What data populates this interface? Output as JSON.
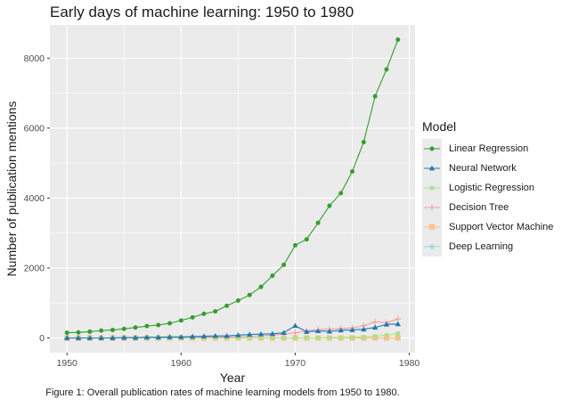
{
  "chart_data": {
    "type": "line",
    "title": "Early days of machine learning: 1950 to 1980",
    "xlabel": "Year",
    "ylabel": "Number of publication mentions",
    "caption": "Figure 1: Overall publication rates of machine learning models from 1950 to 1980.",
    "x_ticks": [
      "1950",
      "1960",
      "1970",
      "1980"
    ],
    "y_ticks": [
      "0",
      "2000",
      "4000",
      "6000",
      "8000"
    ],
    "xlim": [
      1948.5,
      1980.5
    ],
    "ylim": [
      -420,
      8950
    ],
    "grid": true,
    "legend_title": "Model",
    "legend_position": "right",
    "x": [
      1950,
      1951,
      1952,
      1953,
      1954,
      1955,
      1956,
      1957,
      1958,
      1959,
      1960,
      1961,
      1962,
      1963,
      1964,
      1965,
      1966,
      1967,
      1968,
      1969,
      1970,
      1971,
      1972,
      1973,
      1974,
      1975,
      1976,
      1977,
      1978,
      1979
    ],
    "series": [
      {
        "name": "Linear Regression",
        "color": "#33a02c",
        "marker": "circle",
        "values": [
          150,
          160,
          180,
          210,
          230,
          260,
          300,
          340,
          370,
          420,
          500,
          590,
          690,
          760,
          920,
          1070,
          1230,
          1460,
          1780,
          2090,
          2650,
          2820,
          3290,
          3780,
          4140,
          4760,
          5600,
          6910,
          7680,
          8530
        ]
      },
      {
        "name": "Neural Network",
        "color": "#1f78b4",
        "marker": "triangle",
        "values": [
          0,
          0,
          0,
          0,
          0,
          10,
          10,
          20,
          20,
          30,
          30,
          40,
          50,
          60,
          60,
          80,
          100,
          110,
          120,
          150,
          350,
          180,
          200,
          190,
          220,
          230,
          250,
          300,
          390,
          400
        ]
      },
      {
        "name": "Logistic Regression",
        "color": "#b2df8a",
        "marker": "square",
        "values": [
          0,
          0,
          0,
          0,
          0,
          0,
          0,
          0,
          0,
          0,
          0,
          0,
          0,
          0,
          0,
          0,
          0,
          0,
          0,
          0,
          0,
          0,
          0,
          10,
          10,
          20,
          30,
          50,
          80,
          130
        ]
      },
      {
        "name": "Decision Tree",
        "color": "#fb9a99",
        "marker": "plus",
        "values": [
          0,
          0,
          0,
          0,
          0,
          0,
          0,
          0,
          0,
          10,
          10,
          10,
          20,
          20,
          30,
          30,
          40,
          60,
          80,
          110,
          150,
          200,
          240,
          250,
          270,
          290,
          350,
          460,
          440,
          540
        ]
      },
      {
        "name": "Support Vector Machine",
        "color": "#fdbf6f",
        "marker": "square-cross",
        "values": [
          0,
          0,
          0,
          0,
          0,
          0,
          0,
          0,
          0,
          0,
          0,
          0,
          0,
          0,
          0,
          0,
          0,
          0,
          0,
          0,
          0,
          0,
          0,
          0,
          0,
          0,
          0,
          0,
          0,
          0
        ]
      },
      {
        "name": "Deep Learning",
        "color": "#a6cee3",
        "marker": "asterisk",
        "values": [
          0,
          0,
          0,
          0,
          0,
          0,
          0,
          0,
          0,
          0,
          0,
          0,
          0,
          0,
          0,
          0,
          0,
          0,
          0,
          0,
          0,
          0,
          0,
          0,
          0,
          0,
          0,
          0,
          0,
          0
        ]
      }
    ]
  }
}
